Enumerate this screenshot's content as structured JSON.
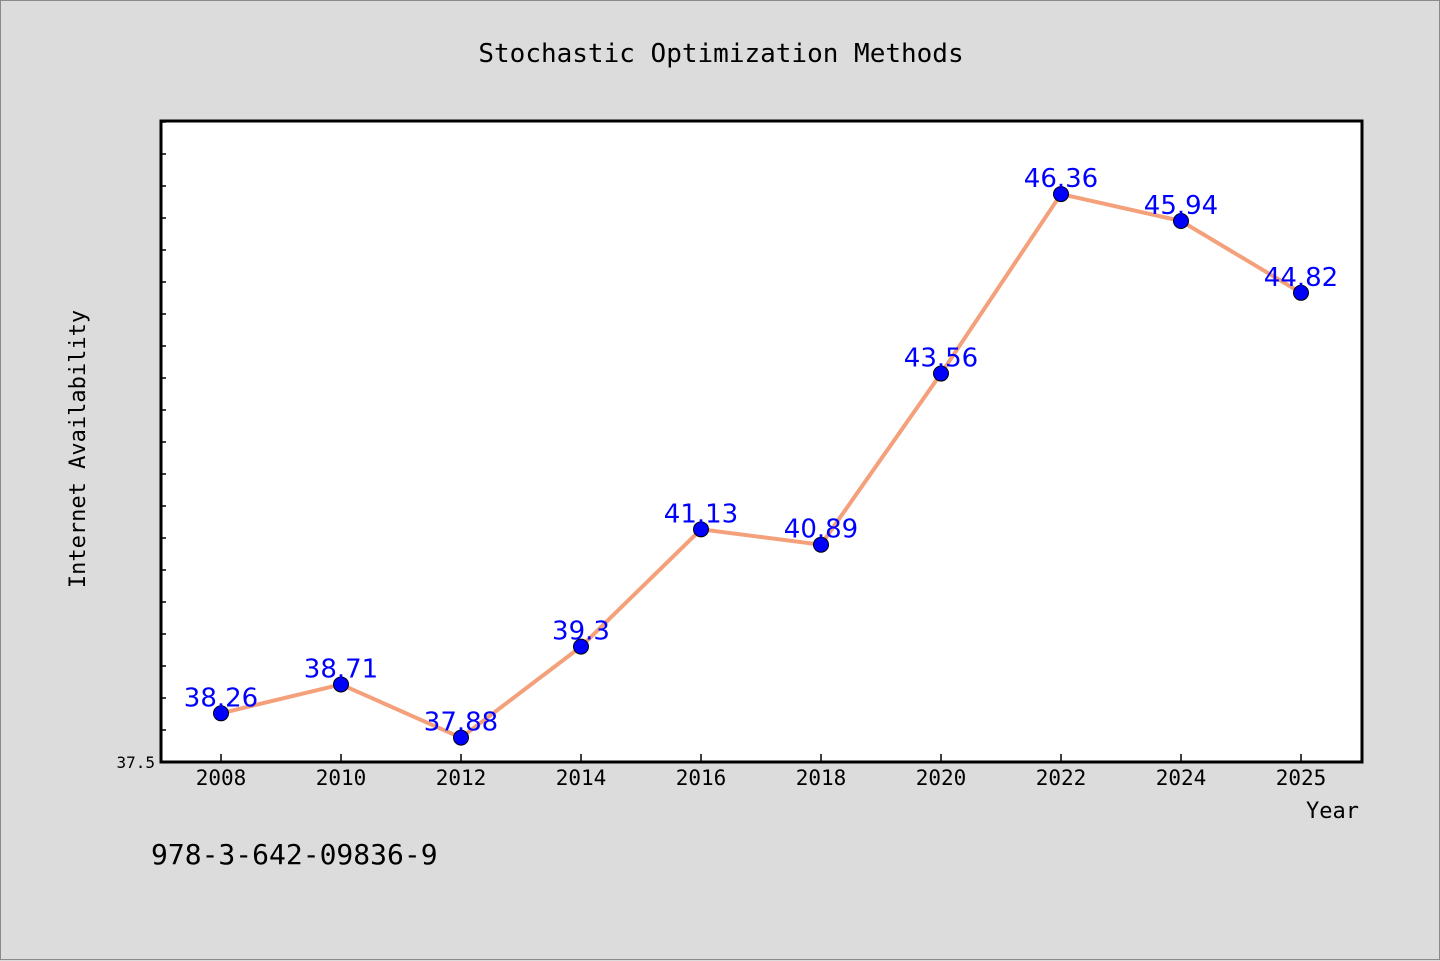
{
  "chart_data": {
    "type": "line",
    "title": "Stochastic Optimization Methods",
    "xlabel": "Year",
    "ylabel": "Internet Availability",
    "x": [
      "2008",
      "2010",
      "2012",
      "2014",
      "2016",
      "2018",
      "2020",
      "2022",
      "2024",
      "2025"
    ],
    "series": [
      {
        "values": [
          38.26,
          38.71,
          37.88,
          39.3,
          41.13,
          40.89,
          43.56,
          46.36,
          45.94,
          44.82
        ]
      }
    ],
    "y_tick_labels": [
      "37.5"
    ],
    "ylim": [
      37.5,
      47.5
    ],
    "grid": false,
    "legend": "none",
    "data_labels": true,
    "colors": {
      "line": "#f4a07a",
      "marker": "#0000ff",
      "label": "#0000ff",
      "background": "#dcdcdc",
      "plot_bg": "#ffffff"
    }
  },
  "footer": {
    "isbn": "978-3-642-09836-9"
  }
}
